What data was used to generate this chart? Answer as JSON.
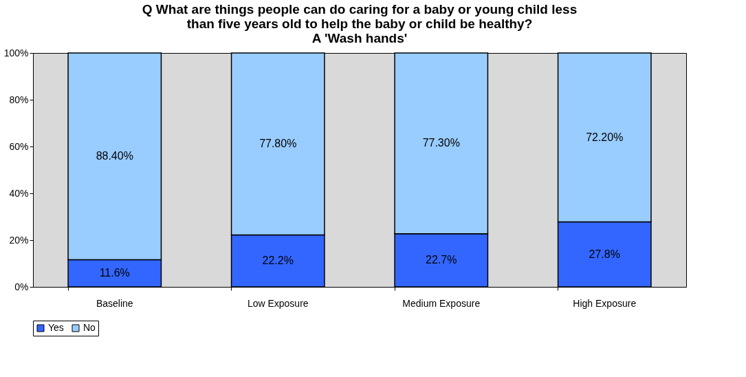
{
  "chart_data": {
    "type": "bar",
    "stacked": true,
    "title": [
      "Q What are things people can do caring for a baby or young child less",
      "than five years old to help the baby or child be healthy?",
      "A 'Wash hands'"
    ],
    "categories": [
      "Baseline",
      "Low Exposure",
      "Medium Exposure",
      "High Exposure"
    ],
    "series": [
      {
        "name": "Yes",
        "color": "#3366ff",
        "values": [
          11.6,
          22.2,
          22.7,
          27.8
        ],
        "value_labels": [
          "11.6%",
          "22.2%",
          "22.7%",
          "27.8%"
        ]
      },
      {
        "name": "No",
        "color": "#99ccff",
        "values": [
          88.4,
          77.8,
          77.3,
          72.2
        ],
        "value_labels": [
          "88.40%",
          "77.80%",
          "77.30%",
          "72.20%"
        ]
      }
    ],
    "ylim": [
      0,
      100
    ],
    "yticks": [
      {
        "value": 0,
        "label": "0%"
      },
      {
        "value": 20,
        "label": "20%"
      },
      {
        "value": 40,
        "label": "40%"
      },
      {
        "value": 60,
        "label": "60%"
      },
      {
        "value": 80,
        "label": "80%"
      },
      {
        "value": 100,
        "label": "100%"
      }
    ],
    "grid": false,
    "legend": "bottom"
  }
}
